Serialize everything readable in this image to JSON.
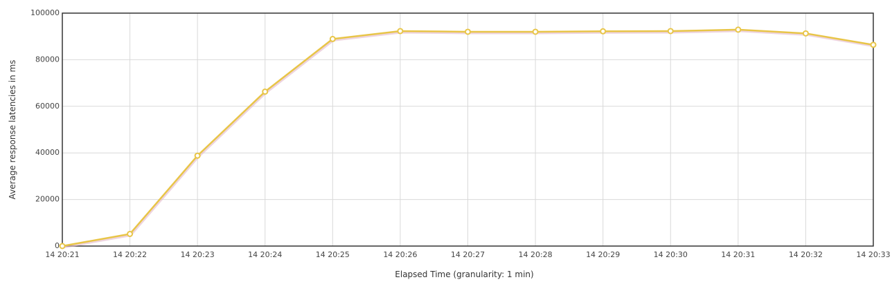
{
  "chart_data": {
    "type": "line",
    "title": "",
    "xlabel": "Elapsed Time (granularity: 1 min)",
    "ylabel": "Average response latencies in ms",
    "categories": [
      "14 20:21",
      "14 20:22",
      "14 20:23",
      "14 20:24",
      "14 20:25",
      "14 20:26",
      "14 20:27",
      "14 20:28",
      "14 20:29",
      "14 20:30",
      "14 20:31",
      "14 20:32",
      "14 20:33"
    ],
    "series": [
      {
        "values": [
          0,
          5200,
          38800,
          66300,
          88900,
          92300,
          92000,
          92000,
          92200,
          92300,
          92900,
          91300,
          86400
        ],
        "color": "#e8c547"
      }
    ],
    "ylim": [
      0,
      100000
    ],
    "yticks": [
      "0",
      "20000",
      "40000",
      "60000",
      "80000",
      "100000"
    ],
    "ytick_values": [
      0,
      20000,
      40000,
      60000,
      80000,
      100000
    ],
    "grid": true,
    "legend": "none",
    "colors": {
      "line": "#e8c547",
      "line_shadow": "#e3b8c8",
      "marker_fill": "#ffffff",
      "grid": "#d9d9d9",
      "axis": "#333333"
    }
  }
}
